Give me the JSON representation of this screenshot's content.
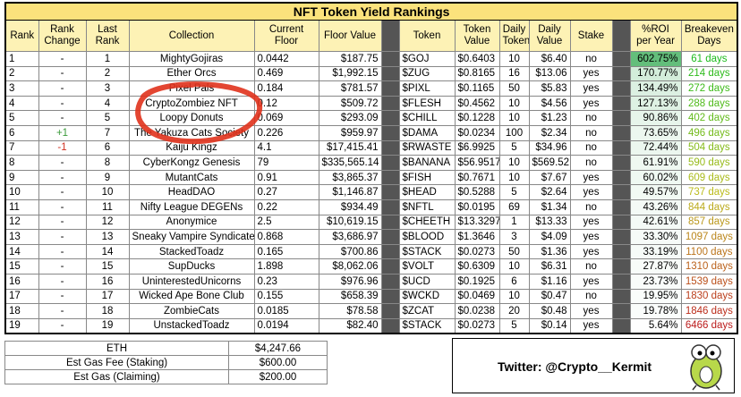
{
  "title": "NFT Token Yield Rankings",
  "table": {
    "headers": [
      "Rank",
      "Rank Change",
      "Last Rank",
      "Collection",
      "Current Floor",
      "Floor Value",
      "Token",
      "Token Value",
      "Daily Token",
      "Daily Value",
      "Stake",
      "%ROI per Year",
      "Breakeven Days"
    ],
    "rows": [
      [
        "1",
        "-",
        "1",
        "MightyGojiras",
        "0.0442",
        "$187.75",
        "$GOJ",
        "$0.6403",
        "10",
        "$6.40",
        "no",
        "602.75%",
        "61 days"
      ],
      [
        "2",
        "-",
        "2",
        "Ether Orcs",
        "0.469",
        "$1,992.15",
        "$ZUG",
        "$0.8165",
        "16",
        "$13.06",
        "yes",
        "170.77%",
        "214 days"
      ],
      [
        "3",
        "-",
        "3",
        "Pixel Pals",
        "0.184",
        "$781.57",
        "$PIXL",
        "$0.1165",
        "50",
        "$5.83",
        "yes",
        "134.49%",
        "272 days"
      ],
      [
        "4",
        "-",
        "4",
        "CryptoZombiez NFT",
        "0.12",
        "$509.72",
        "$FLESH",
        "$0.4562",
        "10",
        "$4.56",
        "yes",
        "127.13%",
        "288 days"
      ],
      [
        "5",
        "-",
        "5",
        "Loopy Donuts",
        "0.069",
        "$293.09",
        "$CHILL",
        "$0.1228",
        "10",
        "$1.23",
        "no",
        "90.86%",
        "402 days"
      ],
      [
        "6",
        "+1",
        "7",
        "The Yakuza Cats Society",
        "0.226",
        "$959.97",
        "$DAMA",
        "$0.0234",
        "100",
        "$2.34",
        "no",
        "73.65%",
        "496 days"
      ],
      [
        "7",
        "-1",
        "6",
        "Kaiju Kingz",
        "4.1",
        "$17,415.41",
        "$RWASTE",
        "$6.9925",
        "5",
        "$34.96",
        "no",
        "72.44%",
        "504 days"
      ],
      [
        "8",
        "-",
        "8",
        "CyberKongz Genesis",
        "79",
        "$335,565.14",
        "$BANANA",
        "$56.9517",
        "10",
        "$569.52",
        "no",
        "61.91%",
        "590 days"
      ],
      [
        "9",
        "-",
        "9",
        "MutantCats",
        "0.91",
        "$3,865.37",
        "$FISH",
        "$0.7671",
        "10",
        "$7.67",
        "yes",
        "60.02%",
        "609 days"
      ],
      [
        "10",
        "-",
        "10",
        "HeadDAO",
        "0.27",
        "$1,146.87",
        "$HEAD",
        "$0.5288",
        "5",
        "$2.64",
        "yes",
        "49.57%",
        "737 days"
      ],
      [
        "11",
        "-",
        "11",
        "Nifty League DEGENs",
        "0.22",
        "$934.49",
        "$NFTL",
        "$0.0195",
        "69",
        "$1.34",
        "no",
        "43.26%",
        "844 days"
      ],
      [
        "12",
        "-",
        "12",
        "Anonymice",
        "2.5",
        "$10,619.15",
        "$CHEETH",
        "$13.3297",
        "1",
        "$13.33",
        "yes",
        "42.61%",
        "857 days"
      ],
      [
        "13",
        "-",
        "13",
        "Sneaky Vampire Syndicate",
        "0.868",
        "$3,686.97",
        "$BLOOD",
        "$1.3646",
        "3",
        "$4.09",
        "yes",
        "33.30%",
        "1097 days"
      ],
      [
        "14",
        "-",
        "14",
        "StackedToadz",
        "0.165",
        "$700.86",
        "$STACK",
        "$0.0273",
        "50",
        "$1.36",
        "yes",
        "33.19%",
        "1100 days"
      ],
      [
        "15",
        "-",
        "15",
        "SupDucks",
        "1.898",
        "$8,062.06",
        "$VOLT",
        "$0.6309",
        "10",
        "$6.31",
        "no",
        "27.87%",
        "1310 days"
      ],
      [
        "16",
        "-",
        "16",
        "UninterestedUnicorns",
        "0.23",
        "$976.96",
        "$UCD",
        "$0.1925",
        "6",
        "$1.16",
        "yes",
        "23.73%",
        "1539 days"
      ],
      [
        "17",
        "-",
        "17",
        "Wicked Ape Bone Club",
        "0.155",
        "$658.39",
        "$WCKD",
        "$0.0469",
        "10",
        "$0.47",
        "no",
        "19.95%",
        "1830 days"
      ],
      [
        "18",
        "-",
        "18",
        "ZombieCats",
        "0.0185",
        "$78.58",
        "$ZCAT",
        "$0.0238",
        "20",
        "$0.48",
        "yes",
        "19.78%",
        "1846 days"
      ],
      [
        "19",
        "-",
        "19",
        "UnstackedToadz",
        "0.0194",
        "$82.40",
        "$STACK",
        "$0.0273",
        "5",
        "$0.14",
        "yes",
        "5.64%",
        "6466 days"
      ]
    ]
  },
  "summary": {
    "rows": [
      [
        "ETH",
        "$4,247.66"
      ],
      [
        "Est Gas Fee (Staking)",
        "$600.00"
      ],
      [
        "Est Gas (Claiming)",
        "$200.00"
      ]
    ]
  },
  "twitter": "Twitter: @Crypto__Kermit"
}
